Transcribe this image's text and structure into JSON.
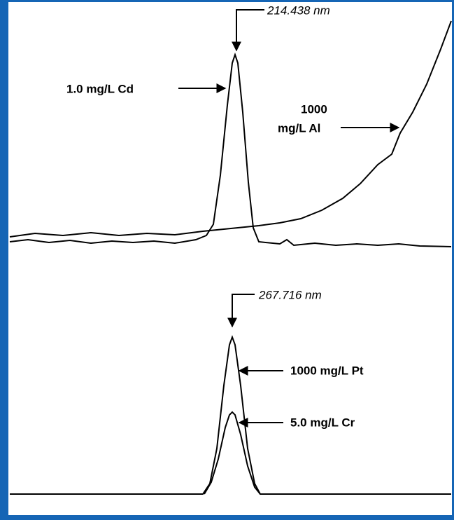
{
  "top_panel": {
    "wavelength": "214.438 nm",
    "cd_label": "1.0 mg/L Cd",
    "al_label_line1": "1000",
    "al_label_line2": "mg/L Al"
  },
  "bottom_panel": {
    "wavelength": "267.716 nm",
    "pt_label": "1000 mg/L Pt",
    "cr_label": "5.0 mg/L Cr"
  }
}
